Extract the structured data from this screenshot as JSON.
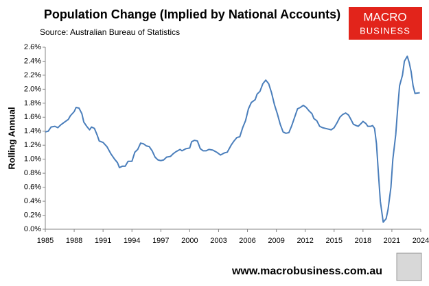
{
  "chart_data": {
    "type": "line",
    "title": "Population Change (Implied by National Accounts)",
    "subtitle": "Source: Australian Bureau of Statistics",
    "y_axis_label": "Rolling Annual",
    "logo": {
      "line1": "MACRO",
      "line2": "BUSINESS"
    },
    "footer": "www.macrobusiness.com.au",
    "x": [
      1985.0,
      1985.3,
      1985.6,
      1986.0,
      1986.3,
      1986.6,
      1987.0,
      1987.4,
      1987.6,
      1988.0,
      1988.2,
      1988.5,
      1988.8,
      1989.0,
      1989.3,
      1989.6,
      1989.8,
      1990.1,
      1990.4,
      1990.6,
      1991.0,
      1991.4,
      1991.8,
      1992.2,
      1992.5,
      1992.7,
      1993.0,
      1993.3,
      1993.6,
      1994.0,
      1994.3,
      1994.6,
      1994.9,
      1995.2,
      1995.5,
      1995.8,
      1996.1,
      1996.4,
      1996.7,
      1997.0,
      1997.3,
      1997.6,
      1998.0,
      1998.3,
      1998.6,
      1999.0,
      1999.2,
      1999.6,
      2000.0,
      2000.2,
      2000.5,
      2000.8,
      2001.1,
      2001.4,
      2001.7,
      2002.0,
      2002.4,
      2002.8,
      2003.2,
      2003.6,
      2003.9,
      2004.3,
      2004.6,
      2004.9,
      2005.2,
      2005.5,
      2005.8,
      2006.1,
      2006.4,
      2006.8,
      2007.0,
      2007.3,
      2007.6,
      2007.9,
      2008.2,
      2008.5,
      2008.8,
      2009.1,
      2009.4,
      2009.7,
      2010.0,
      2010.3,
      2010.6,
      2010.9,
      2011.2,
      2011.5,
      2011.8,
      2012.1,
      2012.4,
      2012.7,
      2012.9,
      2013.2,
      2013.5,
      2013.8,
      2014.1,
      2014.4,
      2014.7,
      2015.0,
      2015.3,
      2015.6,
      2015.9,
      2016.2,
      2016.5,
      2016.7,
      2017.0,
      2017.3,
      2017.5,
      2017.8,
      2018.0,
      2018.3,
      2018.5,
      2018.8,
      2019.0,
      2019.2,
      2019.4,
      2019.6,
      2019.8,
      2020.1,
      2020.4,
      2020.6,
      2020.9,
      2021.1,
      2021.4,
      2021.6,
      2021.8,
      2022.1,
      2022.3,
      2022.6,
      2022.8,
      2023.0,
      2023.2,
      2023.4,
      2023.9
    ],
    "series": [
      {
        "name": "Rolling Annual",
        "color": "#4a7ebb",
        "values": [
          1.39,
          1.4,
          1.46,
          1.47,
          1.45,
          1.49,
          1.53,
          1.57,
          1.62,
          1.68,
          1.74,
          1.73,
          1.65,
          1.53,
          1.47,
          1.42,
          1.46,
          1.44,
          1.34,
          1.26,
          1.24,
          1.18,
          1.08,
          1.0,
          0.95,
          0.88,
          0.9,
          0.9,
          0.97,
          0.97,
          1.1,
          1.14,
          1.23,
          1.22,
          1.19,
          1.18,
          1.12,
          1.03,
          0.99,
          0.98,
          0.99,
          1.03,
          1.04,
          1.08,
          1.11,
          1.14,
          1.12,
          1.15,
          1.16,
          1.25,
          1.27,
          1.26,
          1.15,
          1.12,
          1.12,
          1.14,
          1.13,
          1.1,
          1.06,
          1.09,
          1.1,
          1.2,
          1.26,
          1.31,
          1.32,
          1.45,
          1.55,
          1.72,
          1.81,
          1.85,
          1.93,
          1.97,
          2.08,
          2.13,
          2.08,
          1.95,
          1.78,
          1.65,
          1.5,
          1.39,
          1.37,
          1.38,
          1.48,
          1.6,
          1.72,
          1.74,
          1.77,
          1.74,
          1.69,
          1.65,
          1.58,
          1.55,
          1.47,
          1.45,
          1.44,
          1.43,
          1.42,
          1.45,
          1.52,
          1.6,
          1.64,
          1.66,
          1.63,
          1.58,
          1.5,
          1.48,
          1.47,
          1.51,
          1.54,
          1.51,
          1.47,
          1.47,
          1.48,
          1.44,
          1.22,
          0.8,
          0.4,
          0.1,
          0.15,
          0.28,
          0.6,
          1.0,
          1.35,
          1.72,
          2.05,
          2.2,
          2.4,
          2.47,
          2.38,
          2.25,
          2.05,
          1.94,
          1.95
        ]
      }
    ],
    "xlim": [
      1985,
      2024
    ],
    "xticks": [
      1985,
      1988,
      1991,
      1994,
      1997,
      2000,
      2003,
      2006,
      2009,
      2012,
      2015,
      2018,
      2021,
      2024
    ],
    "ylim": [
      0,
      2.6
    ],
    "yticks": [
      {
        "value": 0,
        "label": "0.0%"
      },
      {
        "value": 0.2,
        "label": "0.2%"
      },
      {
        "value": 0.4,
        "label": "0.4%"
      },
      {
        "value": 0.6,
        "label": "0.6%"
      },
      {
        "value": 0.8,
        "label": "0.8%"
      },
      {
        "value": 1.0,
        "label": "1.0%"
      },
      {
        "value": 1.2,
        "label": "1.2%"
      },
      {
        "value": 1.4,
        "label": "1.4%"
      },
      {
        "value": 1.6,
        "label": "1.6%"
      },
      {
        "value": 1.8,
        "label": "1.8%"
      },
      {
        "value": 2.0,
        "label": "2.0%"
      },
      {
        "value": 2.2,
        "label": "2.2%"
      },
      {
        "value": 2.4,
        "label": "2.4%"
      },
      {
        "value": 2.6,
        "label": "2.6%"
      }
    ],
    "grid": false
  }
}
